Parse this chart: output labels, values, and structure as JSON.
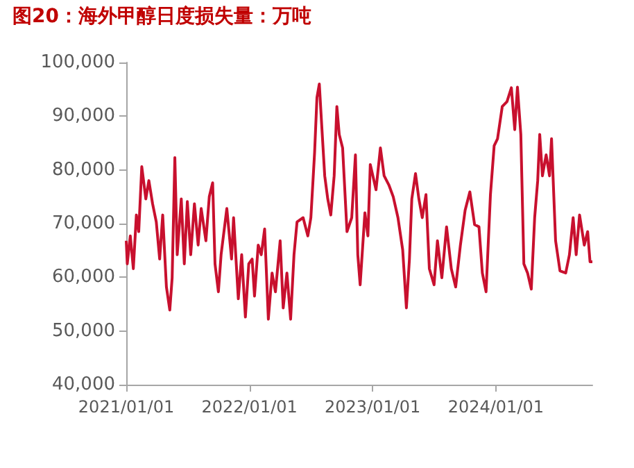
{
  "chart_data": {
    "type": "line",
    "title": "图20：海外甲醇日度损失量：万吨",
    "x": [
      "2021-01-01",
      "2021-01-04",
      "2021-01-13",
      "2021-01-22",
      "2021-01-31",
      "2021-02-07",
      "2021-02-16",
      "2021-02-28",
      "2021-03-09",
      "2021-03-20",
      "2021-03-31",
      "2021-04-10",
      "2021-04-19",
      "2021-04-30",
      "2021-05-10",
      "2021-05-17",
      "2021-05-25",
      "2021-06-01",
      "2021-06-13",
      "2021-06-22",
      "2021-07-01",
      "2021-07-11",
      "2021-07-22",
      "2021-08-02",
      "2021-08-11",
      "2021-08-25",
      "2021-09-04",
      "2021-09-14",
      "2021-09-21",
      "2021-10-01",
      "2021-10-09",
      "2021-10-26",
      "2021-11-09",
      "2021-11-15",
      "2021-11-29",
      "2021-12-09",
      "2021-12-20",
      "2021-12-30",
      "2022-01-09",
      "2022-01-16",
      "2022-01-27",
      "2022-02-05",
      "2022-02-15",
      "2022-02-26",
      "2022-03-09",
      "2022-03-19",
      "2022-04-02",
      "2022-04-11",
      "2022-04-22",
      "2022-05-03",
      "2022-05-13",
      "2022-05-22",
      "2022-06-09",
      "2022-06-23",
      "2022-07-02",
      "2022-07-13",
      "2022-07-20",
      "2022-07-27",
      "2022-08-03",
      "2022-08-12",
      "2022-08-21",
      "2022-08-30",
      "2022-09-09",
      "2022-09-17",
      "2022-09-24",
      "2022-10-04",
      "2022-10-17",
      "2022-10-31",
      "2022-11-11",
      "2022-11-18",
      "2022-11-25",
      "2022-12-09",
      "2022-12-18",
      "2022-12-25",
      "2023-01-11",
      "2023-01-24",
      "2023-02-04",
      "2023-02-18",
      "2023-03-03",
      "2023-03-17",
      "2023-03-31",
      "2023-04-11",
      "2023-04-20",
      "2023-04-27",
      "2023-05-08",
      "2023-05-18",
      "2023-05-28",
      "2023-06-08",
      "2023-06-18",
      "2023-07-02",
      "2023-07-12",
      "2023-07-25",
      "2023-08-08",
      "2023-08-22",
      "2023-09-04",
      "2023-09-18",
      "2023-10-02",
      "2023-10-16",
      "2023-10-30",
      "2023-11-12",
      "2023-11-22",
      "2023-12-03",
      "2023-12-16",
      "2023-12-27",
      "2024-01-06",
      "2024-01-20",
      "2024-02-03",
      "2024-02-16",
      "2024-02-26",
      "2024-03-05",
      "2024-03-15",
      "2024-03-24",
      "2024-04-04",
      "2024-04-15",
      "2024-04-25",
      "2024-05-04",
      "2024-05-10",
      "2024-05-18",
      "2024-05-29",
      "2024-06-08",
      "2024-06-14",
      "2024-06-26",
      "2024-07-09",
      "2024-07-26",
      "2024-08-06",
      "2024-08-17",
      "2024-08-26",
      "2024-09-05",
      "2024-09-19",
      "2024-09-29",
      "2024-10-06",
      "2024-10-13"
    ],
    "series": [
      {
        "color": "#c8102e",
        "values": [
          66800,
          62500,
          67700,
          61600,
          71600,
          68500,
          80600,
          74600,
          78000,
          73700,
          70300,
          63400,
          71600,
          58200,
          53900,
          59900,
          82300,
          64200,
          74600,
          62500,
          74100,
          64200,
          73700,
          66000,
          72800,
          66800,
          75000,
          77600,
          62500,
          57300,
          64200,
          72800,
          63400,
          71100,
          56000,
          64200,
          52600,
          62500,
          63400,
          56500,
          66000,
          64200,
          69000,
          52200,
          60800,
          57300,
          66800,
          54300,
          60800,
          52200,
          64200,
          70300,
          71100,
          67700,
          71100,
          83200,
          93500,
          96000,
          88400,
          78900,
          74600,
          71600,
          78900,
          91800,
          86600,
          84100,
          68500,
          71100,
          82800,
          64200,
          58600,
          72000,
          67700,
          81000,
          76300,
          84100,
          78900,
          77200,
          75000,
          71100,
          65100,
          54300,
          63400,
          74600,
          79300,
          74600,
          71100,
          75400,
          61600,
          58600,
          66800,
          59900,
          69400,
          61600,
          58200,
          66000,
          72500,
          75900,
          69800,
          69400,
          60800,
          57300,
          75400,
          84500,
          85800,
          91800,
          92700,
          95300,
          87500,
          95400,
          86600,
          62500,
          60800,
          57800,
          71100,
          78000,
          86600,
          78900,
          82800,
          78900,
          85800,
          66800,
          61200,
          60800,
          64200,
          71100,
          64200,
          71600,
          66000,
          68500,
          62900,
          62900
        ]
      }
    ],
    "xlim": [
      "2021-01-01",
      "2024-10-13"
    ],
    "xticks": [
      {
        "value": "2021-01-01",
        "label": "2021/01/01"
      },
      {
        "value": "2022-01-01",
        "label": "2022/01/01"
      },
      {
        "value": "2023-01-01",
        "label": "2023/01/01"
      },
      {
        "value": "2024-01-01",
        "label": "2024/01/01"
      }
    ],
    "ylim": [
      40000,
      100000
    ],
    "yticks": [
      {
        "value": 40000,
        "label": "40,000"
      },
      {
        "value": 50000,
        "label": "50,000"
      },
      {
        "value": 60000,
        "label": "60,000"
      },
      {
        "value": 70000,
        "label": "70,000"
      },
      {
        "value": 80000,
        "label": "80,000"
      },
      {
        "value": 90000,
        "label": "90,000"
      },
      {
        "value": 100000,
        "label": "100,000"
      }
    ],
    "grid": false,
    "marker": "none",
    "line_style": "solid"
  }
}
